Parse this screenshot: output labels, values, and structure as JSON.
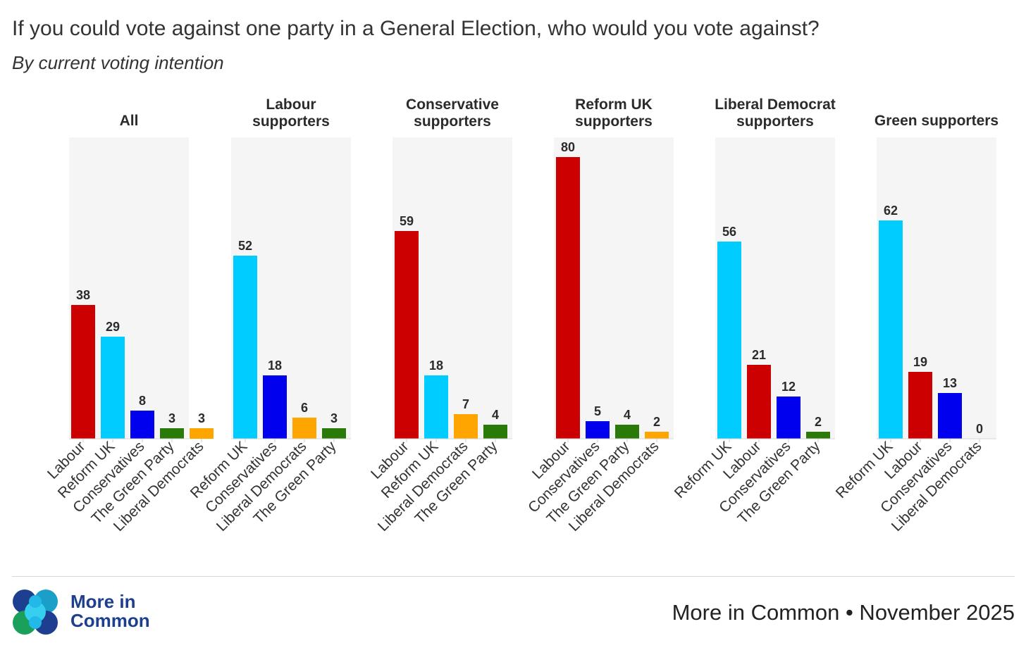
{
  "title": "If you could vote against one party in a General Election, who would you vote against?",
  "subtitle": "By current voting intention",
  "colors": {
    "Labour": "#cc0000",
    "Reform UK": "#00ccff",
    "Conservatives": "#0000ee",
    "The Green Party": "#2a7a0a",
    "Liberal Democrats": "#ffa500",
    "panel_bg": "#f5f5f5"
  },
  "chart_data": [
    {
      "type": "bar",
      "title": "All",
      "categories": [
        "Labour",
        "Reform UK",
        "Conservatives",
        "The Green Party",
        "Liberal Democrats"
      ],
      "values": [
        38,
        29,
        8,
        3,
        3
      ],
      "ylim": [
        0,
        80
      ]
    },
    {
      "type": "bar",
      "title": "Labour supporters",
      "categories": [
        "Reform UK",
        "Conservatives",
        "Liberal Democrats",
        "The Green Party"
      ],
      "values": [
        52,
        18,
        6,
        3
      ],
      "ylim": [
        0,
        80
      ]
    },
    {
      "type": "bar",
      "title": "Conservative supporters",
      "categories": [
        "Labour",
        "Reform UK",
        "Liberal Democrats",
        "The Green Party"
      ],
      "values": [
        59,
        18,
        7,
        4
      ],
      "ylim": [
        0,
        80
      ]
    },
    {
      "type": "bar",
      "title": "Reform UK supporters",
      "categories": [
        "Labour",
        "Conservatives",
        "The Green Party",
        "Liberal Democrats"
      ],
      "values": [
        80,
        5,
        4,
        2
      ],
      "ylim": [
        0,
        80
      ]
    },
    {
      "type": "bar",
      "title": "Liberal Democrat supporters",
      "categories": [
        "Reform UK",
        "Labour",
        "Conservatives",
        "The Green Party"
      ],
      "values": [
        56,
        21,
        12,
        2
      ],
      "ylim": [
        0,
        80
      ]
    },
    {
      "type": "bar",
      "title": "Green supporters",
      "categories": [
        "Reform UK",
        "Labour",
        "Conservatives",
        "Liberal Democrats"
      ],
      "values": [
        62,
        19,
        13,
        0
      ],
      "ylim": [
        0,
        80
      ]
    }
  ],
  "panel_titles": [
    [
      "All"
    ],
    [
      "Labour",
      "supporters"
    ],
    [
      "Conservative",
      "supporters"
    ],
    [
      "Reform UK",
      "supporters"
    ],
    [
      "Liberal Democrat",
      "supporters"
    ],
    [
      "Green supporters"
    ]
  ],
  "logo": {
    "line1": "More in",
    "line2": "Common"
  },
  "footer": "More in Common • November 2025"
}
